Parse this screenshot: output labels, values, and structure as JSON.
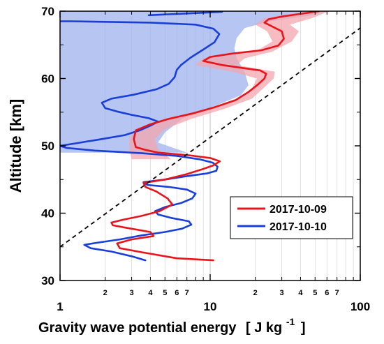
{
  "chart_data": {
    "type": "line",
    "xlabel": "Gravity wave potential energy",
    "xunit_text": "[ J kg",
    "xunit_exp": "-1",
    "xunit_close": "]",
    "ylabel": "Altitude [km]",
    "xscale": "log",
    "xlim": [
      1,
      100
    ],
    "ylim": [
      30,
      70
    ],
    "x_major_ticks": [
      {
        "value": 1,
        "label": "1"
      },
      {
        "value": 10,
        "label": "10"
      },
      {
        "value": 100,
        "label": "100"
      }
    ],
    "x_minor_ticks": [
      {
        "value": 2,
        "label": "2"
      },
      {
        "value": 3,
        "label": "3"
      },
      {
        "value": 4,
        "label": "4"
      },
      {
        "value": 5,
        "label": "5"
      },
      {
        "value": 6,
        "label": "6"
      },
      {
        "value": 7,
        "label": "7"
      },
      {
        "value": 8,
        "label": ""
      },
      {
        "value": 9,
        "label": ""
      },
      {
        "value": 20,
        "label": "2"
      },
      {
        "value": 30,
        "label": "3"
      },
      {
        "value": 40,
        "label": "4"
      },
      {
        "value": 50,
        "label": "5"
      },
      {
        "value": 60,
        "label": "6"
      },
      {
        "value": 70,
        "label": "7"
      },
      {
        "value": 80,
        "label": ""
      },
      {
        "value": 90,
        "label": ""
      }
    ],
    "y_ticks": [
      {
        "value": 30,
        "label": "30"
      },
      {
        "value": 40,
        "label": "40"
      },
      {
        "value": 50,
        "label": "50"
      },
      {
        "value": 60,
        "label": "60"
      },
      {
        "value": 70,
        "label": "70"
      }
    ],
    "grid": true,
    "legend_position": "lower-right",
    "colors": {
      "red": "#e8141b",
      "blue": "#1a3fd6",
      "red_band": "#f4a6ae",
      "blue_band": "#9fb1ef"
    },
    "series": [
      {
        "name": "2017-10-09",
        "color": "#e8141b",
        "points": [
          [
            10.5,
            33
          ],
          [
            6.0,
            33.3
          ],
          [
            3.5,
            34.2
          ],
          [
            2.5,
            34.8
          ],
          [
            2.4,
            35.5
          ],
          [
            3.0,
            36.1
          ],
          [
            4.2,
            36.6
          ],
          [
            4.0,
            37.2
          ],
          [
            2.8,
            37.8
          ],
          [
            2.25,
            38.2
          ],
          [
            2.2,
            38.6
          ],
          [
            2.6,
            39.0
          ],
          [
            3.5,
            39.6
          ],
          [
            4.6,
            40.3
          ],
          [
            5.6,
            41.3
          ],
          [
            5.2,
            42.2
          ],
          [
            4.4,
            43.2
          ],
          [
            3.7,
            43.9
          ],
          [
            3.6,
            44.5
          ],
          [
            5.0,
            45.0
          ],
          [
            7.0,
            45.8
          ],
          [
            8.8,
            46.5
          ],
          [
            10.5,
            47.1
          ],
          [
            11.6,
            47.7
          ],
          [
            10.0,
            48.2
          ],
          [
            7.2,
            48.6
          ],
          [
            4.5,
            49.0
          ],
          [
            3.7,
            49.4
          ],
          [
            3.2,
            49.8
          ],
          [
            3.1,
            51.0
          ],
          [
            3.2,
            52.3
          ],
          [
            4.0,
            53.2
          ],
          [
            5.3,
            54.0
          ],
          [
            7.6,
            54.8
          ],
          [
            10.6,
            55.7
          ],
          [
            14.8,
            56.8
          ],
          [
            18.0,
            58.0
          ],
          [
            20.8,
            59.1
          ],
          [
            23.0,
            60.0
          ],
          [
            23.6,
            60.7
          ],
          [
            21.5,
            61.2
          ],
          [
            16.0,
            61.6
          ],
          [
            12.0,
            62.0
          ],
          [
            9.0,
            62.6
          ],
          [
            10.0,
            63.2
          ],
          [
            14.0,
            63.7
          ],
          [
            22.0,
            64.2
          ],
          [
            28.5,
            64.9
          ],
          [
            31.0,
            65.9
          ],
          [
            30.0,
            67.0
          ],
          [
            25.5,
            67.8
          ],
          [
            23.0,
            68.3
          ],
          [
            24.5,
            68.8
          ],
          [
            30.0,
            69.2
          ],
          [
            40.0,
            69.6
          ],
          [
            53.0,
            70.0
          ]
        ]
      },
      {
        "name": "2017-10-10",
        "color": "#1a3fd6",
        "points": [
          [
            3.7,
            33
          ],
          [
            3.0,
            33.6
          ],
          [
            2.2,
            34.3
          ],
          [
            1.6,
            34.8
          ],
          [
            1.45,
            35.3
          ],
          [
            1.75,
            35.6
          ],
          [
            2.5,
            36.1
          ],
          [
            3.5,
            36.7
          ],
          [
            5.0,
            37.2
          ],
          [
            6.5,
            37.7
          ],
          [
            7.5,
            38.3
          ],
          [
            7.2,
            38.8
          ],
          [
            5.5,
            39.3
          ],
          [
            4.5,
            39.8
          ],
          [
            4.3,
            40.3
          ],
          [
            5.0,
            40.9
          ],
          [
            6.4,
            41.5
          ],
          [
            7.6,
            42.2
          ],
          [
            8.0,
            42.9
          ],
          [
            7.0,
            43.5
          ],
          [
            5.3,
            43.9
          ],
          [
            3.8,
            44.2
          ],
          [
            3.6,
            44.6
          ],
          [
            5.0,
            45.0
          ],
          [
            7.0,
            45.5
          ],
          [
            9.5,
            45.9
          ],
          [
            11.0,
            46.3
          ],
          [
            11.2,
            46.9
          ],
          [
            10.4,
            47.5
          ],
          [
            8.5,
            48.0
          ],
          [
            6.0,
            48.5
          ],
          [
            3.5,
            48.9
          ],
          [
            1.7,
            49.3
          ],
          [
            1.1,
            49.7
          ],
          [
            1.0,
            50.0
          ],
          [
            1.3,
            50.4
          ],
          [
            1.9,
            51.0
          ],
          [
            2.7,
            51.6
          ],
          [
            3.4,
            52.3
          ],
          [
            4.0,
            53.0
          ],
          [
            4.5,
            53.6
          ],
          [
            3.9,
            54.1
          ],
          [
            3.0,
            54.6
          ],
          [
            2.4,
            55.1
          ],
          [
            2.0,
            55.6
          ],
          [
            1.9,
            56.4
          ],
          [
            2.2,
            57.0
          ],
          [
            3.1,
            57.6
          ],
          [
            4.4,
            58.4
          ],
          [
            5.3,
            59.2
          ],
          [
            5.8,
            60.2
          ],
          [
            6.0,
            61.3
          ],
          [
            6.4,
            62.0
          ],
          [
            7.4,
            63.1
          ],
          [
            9.0,
            64.3
          ],
          [
            10.7,
            65.4
          ],
          [
            11.5,
            66.6
          ],
          [
            10.5,
            67.4
          ],
          [
            8.0,
            68.0
          ],
          [
            4.0,
            68.3
          ],
          [
            1.2,
            68.5
          ],
          [
            1.0,
            68.5
          ]
        ]
      },
      {
        "name": "",
        "color": "#1a3fd6",
        "points": [
          [
            3.9,
            69.4
          ],
          [
            12.0,
            69.9
          ]
        ]
      }
    ],
    "bands": [
      {
        "of_series": "2017-10-09",
        "color": "#f4a6ae",
        "range_y": [
          48,
          70
        ],
        "lower": [
          [
            3.0,
            48
          ],
          [
            2.9,
            49.5
          ],
          [
            2.9,
            51.0
          ],
          [
            3.2,
            52.5
          ],
          [
            5.0,
            54.0
          ],
          [
            9.5,
            55.5
          ],
          [
            15.5,
            57.0
          ],
          [
            19.0,
            58.5
          ],
          [
            20.5,
            60.0
          ],
          [
            14.0,
            61.0
          ],
          [
            8.0,
            62.0
          ],
          [
            9.0,
            63.0
          ],
          [
            20.0,
            64.0
          ],
          [
            26.0,
            65.5
          ],
          [
            24.0,
            67.0
          ],
          [
            20.0,
            68.0
          ],
          [
            23.0,
            69.0
          ],
          [
            45.0,
            70.0
          ]
        ],
        "upper": [
          [
            5.5,
            48
          ],
          [
            4.5,
            49.5
          ],
          [
            4.3,
            51.0
          ],
          [
            5.0,
            52.5
          ],
          [
            7.5,
            54.0
          ],
          [
            12.5,
            55.5
          ],
          [
            19.0,
            57.0
          ],
          [
            22.5,
            58.5
          ],
          [
            26.5,
            60.0
          ],
          [
            27.0,
            61.0
          ],
          [
            15.0,
            62.0
          ],
          [
            17.0,
            63.0
          ],
          [
            26.0,
            64.0
          ],
          [
            35.0,
            65.5
          ],
          [
            39.0,
            67.0
          ],
          [
            34.0,
            68.0
          ],
          [
            48.0,
            69.0
          ],
          [
            62.0,
            70.0
          ]
        ]
      },
      {
        "of_series": "2017-10-10",
        "color": "#9fb1ef",
        "range_y": [
          49,
          70
        ],
        "lower": [
          [
            1.0,
            49
          ],
          [
            1.0,
            52.0
          ],
          [
            1.0,
            56.0
          ],
          [
            1.0,
            60.0
          ],
          [
            1.0,
            64.0
          ],
          [
            1.0,
            68.0
          ],
          [
            1.0,
            70.0
          ]
        ],
        "upper": [
          [
            7.0,
            49
          ],
          [
            4.5,
            50.5
          ],
          [
            5.0,
            52.0
          ],
          [
            6.5,
            54.0
          ],
          [
            11.0,
            56.0
          ],
          [
            16.0,
            57.5
          ],
          [
            18.0,
            59.0
          ],
          [
            17.0,
            61.0
          ],
          [
            15.0,
            63.0
          ],
          [
            14.5,
            64.5
          ],
          [
            15.0,
            66.0
          ],
          [
            17.0,
            67.5
          ],
          [
            25.0,
            68.5
          ],
          [
            45.0,
            69.3
          ],
          [
            62.0,
            70.0
          ]
        ]
      }
    ],
    "reference_line": {
      "style": "dashed",
      "color": "#000000",
      "points": [
        [
          1,
          35
        ],
        [
          100,
          67.5
        ]
      ]
    }
  }
}
